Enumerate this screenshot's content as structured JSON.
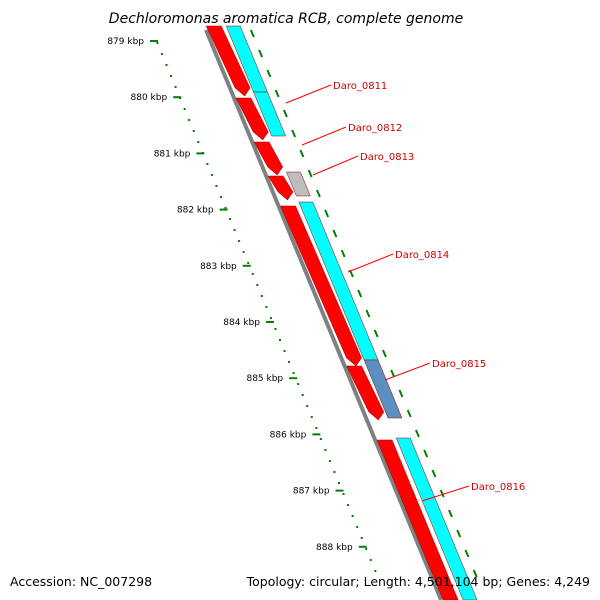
{
  "title": "Dechloromonas aromatica RCB, complete genome",
  "footer": {
    "accession": "Accession: NC_007298",
    "summary": "Topology: circular; Length: 4,501,104 bp; Genes: 4,249"
  },
  "scale": {
    "unit": "kbp",
    "ticks": [
      "879 kbp",
      "880 kbp",
      "881 kbp",
      "882 kbp",
      "883 kbp",
      "884 kbp",
      "885 kbp",
      "886 kbp",
      "887 kbp",
      "888 kbp"
    ]
  },
  "genes": [
    {
      "name": "Daro_0811"
    },
    {
      "name": "Daro_0812"
    },
    {
      "name": "Daro_0813"
    },
    {
      "name": "Daro_0814"
    },
    {
      "name": "Daro_0815"
    },
    {
      "name": "Daro_0816"
    }
  ],
  "colors": {
    "cds": "#ff0000",
    "cds_dark": "#b80000",
    "function_a": "#00ffff",
    "function_b": "#5b8fbf",
    "other": "#bdbdbd",
    "backbone": "#808080",
    "tick": "#008000",
    "label": "#cc0000",
    "leader": "#ff0000"
  }
}
